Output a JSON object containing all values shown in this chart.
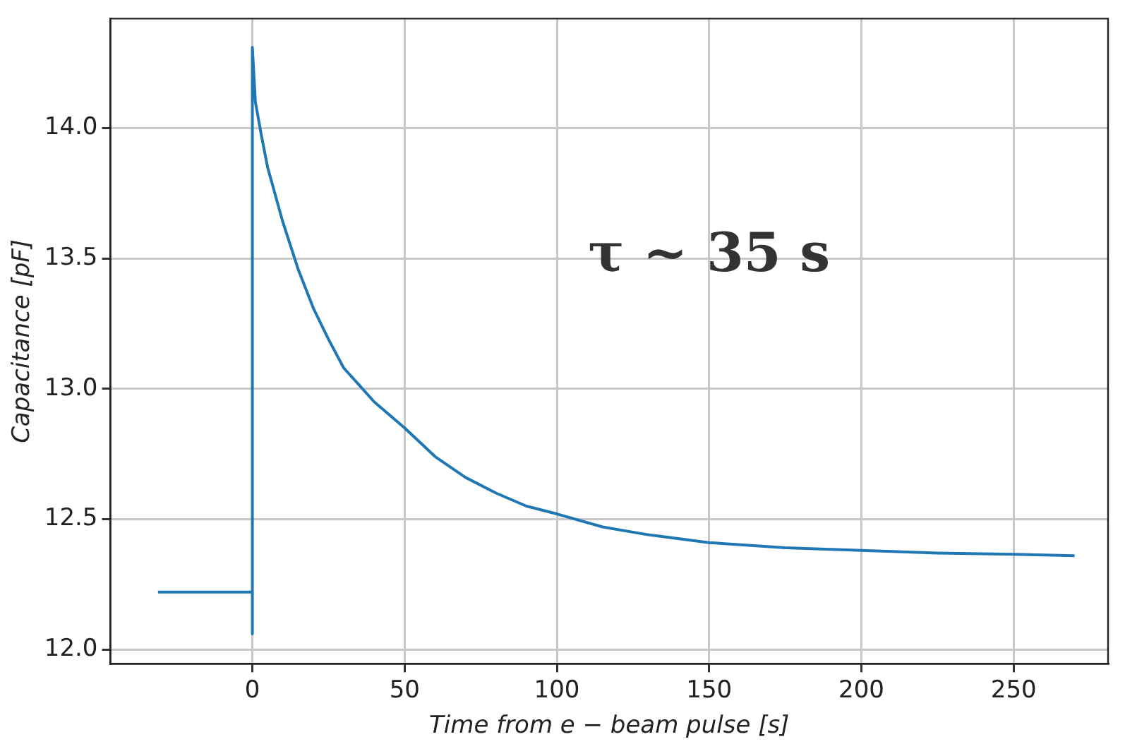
{
  "chart_data": {
    "type": "line",
    "xlabel": "Time from e − beam pulse [s]",
    "ylabel": "Capacitance [pF]",
    "annotations": [
      "τ ~ 35 s"
    ],
    "series": [
      {
        "color": "#1f77b4",
        "x": [
          -31,
          0,
          0,
          0,
          1,
          3,
          5,
          10,
          15,
          20,
          25,
          30,
          40,
          50,
          60,
          70,
          80,
          90,
          100,
          115,
          130,
          150,
          175,
          200,
          225,
          250,
          270
        ],
        "values": [
          12.22,
          12.22,
          12.06,
          14.31,
          14.1,
          13.97,
          13.85,
          13.64,
          13.46,
          13.31,
          13.19,
          13.08,
          12.95,
          12.85,
          12.74,
          12.66,
          12.6,
          12.55,
          12.52,
          12.47,
          12.44,
          12.41,
          12.39,
          12.38,
          12.37,
          12.365,
          12.36
        ]
      }
    ],
    "xlim": [
      -46.6,
      281
    ],
    "ylim": [
      11.945,
      14.42
    ],
    "xticks": [
      0,
      50,
      100,
      150,
      200,
      250
    ],
    "yticks": [
      {
        "value": 12.0,
        "label": "12.0"
      },
      {
        "value": 12.5,
        "label": "12.5"
      },
      {
        "value": 13.0,
        "label": "13.0"
      },
      {
        "value": 13.5,
        "label": "13.5"
      },
      {
        "value": 14.0,
        "label": "14.0"
      }
    ],
    "grid": true,
    "marker": "none",
    "line_style": "solid"
  }
}
